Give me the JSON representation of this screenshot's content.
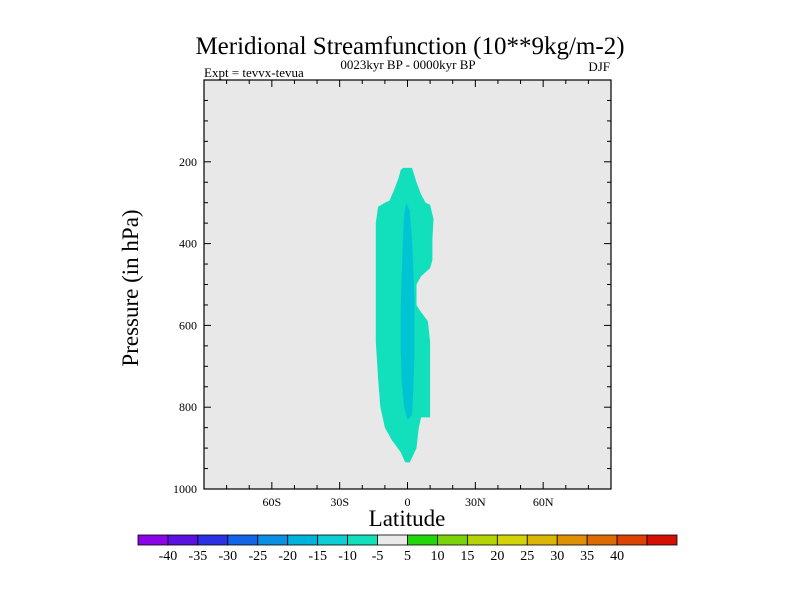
{
  "chart_data": {
    "type": "contour",
    "title": "Meridional Streamfunction (10**9kg/m-2)",
    "subtitle": "0023kyr BP - 0000kyr BP",
    "left_label": "Expt = tevvx-tevua",
    "right_label": "DJF",
    "xlabel": "Latitude",
    "ylabel": "Pressure (in hPa)",
    "xlim": [
      -90,
      90
    ],
    "ylim": [
      1000,
      0
    ],
    "xticks": [
      {
        "value": -60,
        "label": "60S"
      },
      {
        "value": -30,
        "label": "30S"
      },
      {
        "value": 0,
        "label": "0"
      },
      {
        "value": 30,
        "label": "30N"
      },
      {
        "value": 60,
        "label": "60N"
      }
    ],
    "yticks": [
      {
        "value": 200,
        "label": "200"
      },
      {
        "value": 400,
        "label": "400"
      },
      {
        "value": 600,
        "label": "600"
      },
      {
        "value": 800,
        "label": "800"
      },
      {
        "value": 1000,
        "label": "1000"
      }
    ],
    "background_color": "#e8e8e8",
    "regions": [
      {
        "name": "-10 to -5",
        "color": "#12dfbb",
        "polygon": [
          [
            -2,
            215
          ],
          [
            2,
            215
          ],
          [
            4,
            250
          ],
          [
            6,
            280
          ],
          [
            8,
            300
          ],
          [
            10,
            305
          ],
          [
            11.5,
            340
          ],
          [
            11,
            390
          ],
          [
            11,
            440
          ],
          [
            10,
            460
          ],
          [
            6,
            480
          ],
          [
            4,
            500
          ],
          [
            4,
            530
          ],
          [
            4,
            550
          ],
          [
            5,
            560
          ],
          [
            9,
            590
          ],
          [
            10,
            640
          ],
          [
            10,
            700
          ],
          [
            10,
            760
          ],
          [
            10,
            825
          ],
          [
            6,
            825
          ],
          [
            5,
            850
          ],
          [
            4,
            900
          ],
          [
            1,
            935
          ],
          [
            -1,
            935
          ],
          [
            -3,
            910
          ],
          [
            -7,
            880
          ],
          [
            -10,
            850
          ],
          [
            -12,
            800
          ],
          [
            -13,
            730
          ],
          [
            -14,
            640
          ],
          [
            -14,
            550
          ],
          [
            -14,
            450
          ],
          [
            -14,
            350
          ],
          [
            -13,
            310
          ],
          [
            -10,
            300
          ],
          [
            -8,
            295
          ],
          [
            -6,
            270
          ],
          [
            -4,
            240
          ],
          [
            -3,
            220
          ]
        ]
      },
      {
        "name": "-15 to -10",
        "color": "#00c3d3",
        "polygon": [
          [
            -0.5,
            300
          ],
          [
            1,
            320
          ],
          [
            2,
            390
          ],
          [
            2.5,
            460
          ],
          [
            3,
            530
          ],
          [
            3,
            600
          ],
          [
            3,
            680
          ],
          [
            2.5,
            760
          ],
          [
            2,
            820
          ],
          [
            0,
            830
          ],
          [
            -1.5,
            800
          ],
          [
            -2.5,
            740
          ],
          [
            -3,
            660
          ],
          [
            -3,
            560
          ],
          [
            -2.5,
            470
          ],
          [
            -2,
            390
          ],
          [
            -1.5,
            330
          ]
        ]
      }
    ],
    "colorbar": {
      "colors": [
        "#8a06e6",
        "#5a12e0",
        "#2c32e3",
        "#1265e6",
        "#0b8fe3",
        "#00b3dc",
        "#0ccfd3",
        "#12dfbb",
        "#eaeaea",
        "#22d60a",
        "#7ad409",
        "#b4d405",
        "#d4d306",
        "#dcb604",
        "#e09103",
        "#de6a02",
        "#dc4202",
        "#d51002"
      ],
      "labels": [
        "-40",
        "-35",
        "-30",
        "-25",
        "-20",
        "-15",
        "-10",
        "-5",
        "5",
        "10",
        "15",
        "20",
        "25",
        "30",
        "35",
        "40"
      ]
    }
  }
}
